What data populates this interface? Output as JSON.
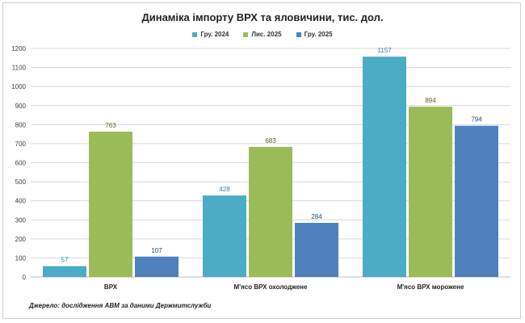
{
  "chart_data": {
    "type": "bar",
    "title": "Динаміка імпорту ВРХ та яловичини, тис. дол.",
    "categories": [
      "ВРХ",
      "М'ясо ВРХ охолоджене",
      "М'ясо ВРХ морожене"
    ],
    "series": [
      {
        "name": "Гру. 2024",
        "color": "#4bacc6",
        "labelColor": "#31859c",
        "values": [
          57,
          428,
          1157
        ]
      },
      {
        "name": "Лис. 2025",
        "color": "#9bbb59",
        "labelColor": "#4f6228",
        "values": [
          763,
          683,
          894
        ]
      },
      {
        "name": "Гру. 2025",
        "color": "#4f81bd",
        "labelColor": "#1f497d",
        "values": [
          107,
          284,
          794
        ]
      }
    ],
    "ylim": [
      0,
      1200
    ],
    "yticks": [
      0,
      100,
      200,
      300,
      400,
      500,
      600,
      700,
      800,
      900,
      1000,
      1100,
      1200
    ],
    "xlabel": "",
    "ylabel": "",
    "grid": true,
    "legend_position": "top"
  },
  "source_note": "Джерело: дослідження АВМ за даними Держмитслужби"
}
